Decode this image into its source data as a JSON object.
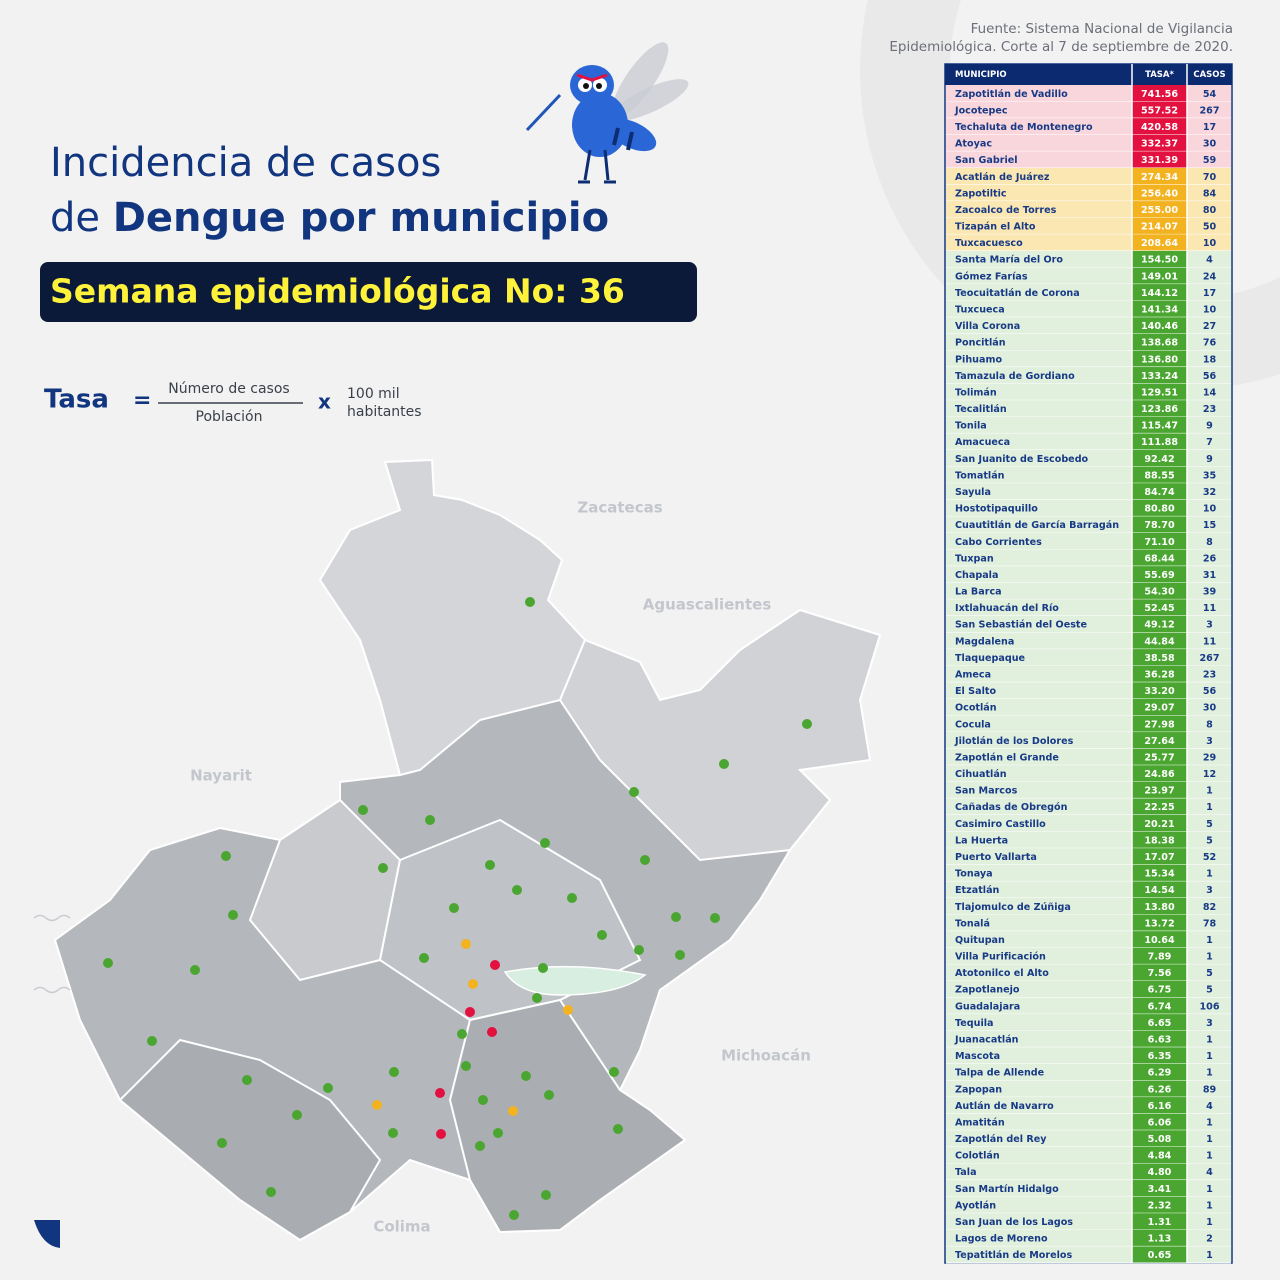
{
  "source": {
    "line1": "Fuente: Sistema Nacional de Vigilancia",
    "line2": "Epidemiológica. Corte al 7 de septiembre de 2020."
  },
  "title": {
    "line1": "Incidencia de casos",
    "line2_prefix": "de",
    "line2_bold": "Dengue por municipio"
  },
  "week": "Semana epidemiológica No: 36",
  "formula": {
    "label": "Tasa",
    "equals": "=",
    "numerator": "Número de casos",
    "denominator": "Población",
    "times": "x",
    "factor_line1": "100 mil",
    "factor_line2": "habitantes"
  },
  "map_labels": [
    "Zacatecas",
    "Aguascalientes",
    "Nayarit",
    "Michoacán",
    "Colima"
  ],
  "table": {
    "headers": [
      "MUNICIPIO",
      "TASA*",
      "CASOS"
    ],
    "level_colors": {
      "high": {
        "row": "#f9d6dc",
        "cell": "#e3113f"
      },
      "mid": {
        "row": "#fbe7b2",
        "cell": "#f3b321"
      },
      "low": {
        "row": "#e1efdd",
        "cell": "#4ba631"
      }
    },
    "rows": [
      {
        "municipio": "Zapotitlán de Vadillo",
        "tasa": "741.56",
        "casos": 54,
        "level": "high"
      },
      {
        "municipio": "Jocotepec",
        "tasa": "557.52",
        "casos": 267,
        "level": "high"
      },
      {
        "municipio": "Techaluta de Montenegro",
        "tasa": "420.58",
        "casos": 17,
        "level": "high"
      },
      {
        "municipio": "Atoyac",
        "tasa": "332.37",
        "casos": 30,
        "level": "high"
      },
      {
        "municipio": "San Gabriel",
        "tasa": "331.39",
        "casos": 59,
        "level": "high"
      },
      {
        "municipio": "Acatlán de Juárez",
        "tasa": "274.34",
        "casos": 70,
        "level": "mid"
      },
      {
        "municipio": "Zapotiltic",
        "tasa": "256.40",
        "casos": 84,
        "level": "mid"
      },
      {
        "municipio": "Zacoalco de Torres",
        "tasa": "255.00",
        "casos": 80,
        "level": "mid"
      },
      {
        "municipio": "Tizapán el Alto",
        "tasa": "214.07",
        "casos": 50,
        "level": "mid"
      },
      {
        "municipio": "Tuxcacuesco",
        "tasa": "208.64",
        "casos": 10,
        "level": "mid"
      },
      {
        "municipio": "Santa María del Oro",
        "tasa": "154.50",
        "casos": 4,
        "level": "low"
      },
      {
        "municipio": "Gómez Farías",
        "tasa": "149.01",
        "casos": 24,
        "level": "low"
      },
      {
        "municipio": "Teocuitatlán de Corona",
        "tasa": "144.12",
        "casos": 17,
        "level": "low"
      },
      {
        "municipio": "Tuxcueca",
        "tasa": "141.34",
        "casos": 10,
        "level": "low"
      },
      {
        "municipio": "Villa Corona",
        "tasa": "140.46",
        "casos": 27,
        "level": "low"
      },
      {
        "municipio": "Poncitlán",
        "tasa": "138.68",
        "casos": 76,
        "level": "low"
      },
      {
        "municipio": "Pihuamo",
        "tasa": "136.80",
        "casos": 18,
        "level": "low"
      },
      {
        "municipio": "Tamazula de Gordiano",
        "tasa": "133.24",
        "casos": 56,
        "level": "low"
      },
      {
        "municipio": "Tolimán",
        "tasa": "129.51",
        "casos": 14,
        "level": "low"
      },
      {
        "municipio": "Tecalitlán",
        "tasa": "123.86",
        "casos": 23,
        "level": "low"
      },
      {
        "municipio": "Tonila",
        "tasa": "115.47",
        "casos": 9,
        "level": "low"
      },
      {
        "municipio": "Amacueca",
        "tasa": "111.88",
        "casos": 7,
        "level": "low"
      },
      {
        "municipio": "San Juanito de Escobedo",
        "tasa": "92.42",
        "casos": 9,
        "level": "low"
      },
      {
        "municipio": "Tomatlán",
        "tasa": "88.55",
        "casos": 35,
        "level": "low"
      },
      {
        "municipio": "Sayula",
        "tasa": "84.74",
        "casos": 32,
        "level": "low"
      },
      {
        "municipio": "Hostotipaquillo",
        "tasa": "80.80",
        "casos": 10,
        "level": "low"
      },
      {
        "municipio": "Cuautitlán de García Barragán",
        "tasa": "78.70",
        "casos": 15,
        "level": "low"
      },
      {
        "municipio": "Cabo Corrientes",
        "tasa": "71.10",
        "casos": 8,
        "level": "low"
      },
      {
        "municipio": "Tuxpan",
        "tasa": "68.44",
        "casos": 26,
        "level": "low"
      },
      {
        "municipio": "Chapala",
        "tasa": "55.69",
        "casos": 31,
        "level": "low"
      },
      {
        "municipio": "La Barca",
        "tasa": "54.30",
        "casos": 39,
        "level": "low"
      },
      {
        "municipio": "Ixtlahuacán del Río",
        "tasa": "52.45",
        "casos": 11,
        "level": "low"
      },
      {
        "municipio": "San Sebastián del Oeste",
        "tasa": "49.12",
        "casos": 3,
        "level": "low"
      },
      {
        "municipio": "Magdalena",
        "tasa": "44.84",
        "casos": 11,
        "level": "low"
      },
      {
        "municipio": "Tlaquepaque",
        "tasa": "38.58",
        "casos": 267,
        "level": "low"
      },
      {
        "municipio": "Ameca",
        "tasa": "36.28",
        "casos": 23,
        "level": "low"
      },
      {
        "municipio": "El Salto",
        "tasa": "33.20",
        "casos": 56,
        "level": "low"
      },
      {
        "municipio": "Ocotlán",
        "tasa": "29.07",
        "casos": 30,
        "level": "low"
      },
      {
        "municipio": "Cocula",
        "tasa": "27.98",
        "casos": 8,
        "level": "low"
      },
      {
        "municipio": "Jilotlán de los Dolores",
        "tasa": "27.64",
        "casos": 3,
        "level": "low"
      },
      {
        "municipio": "Zapotlán el Grande",
        "tasa": "25.77",
        "casos": 29,
        "level": "low"
      },
      {
        "municipio": "Cihuatlán",
        "tasa": "24.86",
        "casos": 12,
        "level": "low"
      },
      {
        "municipio": "San Marcos",
        "tasa": "23.97",
        "casos": 1,
        "level": "low"
      },
      {
        "municipio": "Cañadas de Obregón",
        "tasa": "22.25",
        "casos": 1,
        "level": "low"
      },
      {
        "municipio": "Casimiro Castillo",
        "tasa": "20.21",
        "casos": 5,
        "level": "low"
      },
      {
        "municipio": "La Huerta",
        "tasa": "18.38",
        "casos": 5,
        "level": "low"
      },
      {
        "municipio": "Puerto Vallarta",
        "tasa": "17.07",
        "casos": 52,
        "level": "low"
      },
      {
        "municipio": "Tonaya",
        "tasa": "15.34",
        "casos": 1,
        "level": "low"
      },
      {
        "municipio": "Etzatlán",
        "tasa": "14.54",
        "casos": 3,
        "level": "low"
      },
      {
        "municipio": "Tlajomulco de Zúñiga",
        "tasa": "13.80",
        "casos": 82,
        "level": "low"
      },
      {
        "municipio": "Tonalá",
        "tasa": "13.72",
        "casos": 78,
        "level": "low"
      },
      {
        "municipio": "Quitupan",
        "tasa": "10.64",
        "casos": 1,
        "level": "low"
      },
      {
        "municipio": "Villa Purificación",
        "tasa": "7.89",
        "casos": 1,
        "level": "low"
      },
      {
        "municipio": "Atotonilco el Alto",
        "tasa": "7.56",
        "casos": 5,
        "level": "low"
      },
      {
        "municipio": "Zapotlanejo",
        "tasa": "6.75",
        "casos": 5,
        "level": "low"
      },
      {
        "municipio": "Guadalajara",
        "tasa": "6.74",
        "casos": 106,
        "level": "low"
      },
      {
        "municipio": "Tequila",
        "tasa": "6.65",
        "casos": 3,
        "level": "low"
      },
      {
        "municipio": "Juanacatlán",
        "tasa": "6.63",
        "casos": 1,
        "level": "low"
      },
      {
        "municipio": "Mascota",
        "tasa": "6.35",
        "casos": 1,
        "level": "low"
      },
      {
        "municipio": "Talpa de Allende",
        "tasa": "6.29",
        "casos": 1,
        "level": "low"
      },
      {
        "municipio": "Zapopan",
        "tasa": "6.26",
        "casos": 89,
        "level": "low"
      },
      {
        "municipio": "Autlán de Navarro",
        "tasa": "6.16",
        "casos": 4,
        "level": "low"
      },
      {
        "municipio": "Amatitán",
        "tasa": "6.06",
        "casos": 1,
        "level": "low"
      },
      {
        "municipio": "Zapotlán del Rey",
        "tasa": "5.08",
        "casos": 1,
        "level": "low"
      },
      {
        "municipio": "Colotlán",
        "tasa": "4.84",
        "casos": 1,
        "level": "low"
      },
      {
        "municipio": "Tala",
        "tasa": "4.80",
        "casos": 4,
        "level": "low"
      },
      {
        "municipio": "San Martín Hidalgo",
        "tasa": "3.41",
        "casos": 1,
        "level": "low"
      },
      {
        "municipio": "Ayotlán",
        "tasa": "2.32",
        "casos": 1,
        "level": "low"
      },
      {
        "municipio": "San Juan de los Lagos",
        "tasa": "1.31",
        "casos": 1,
        "level": "low"
      },
      {
        "municipio": "Lagos de Moreno",
        "tasa": "1.13",
        "casos": 2,
        "level": "low"
      },
      {
        "municipio": "Tepatitlán de Morelos",
        "tasa": "0.65",
        "casos": 1,
        "level": "low"
      }
    ]
  }
}
